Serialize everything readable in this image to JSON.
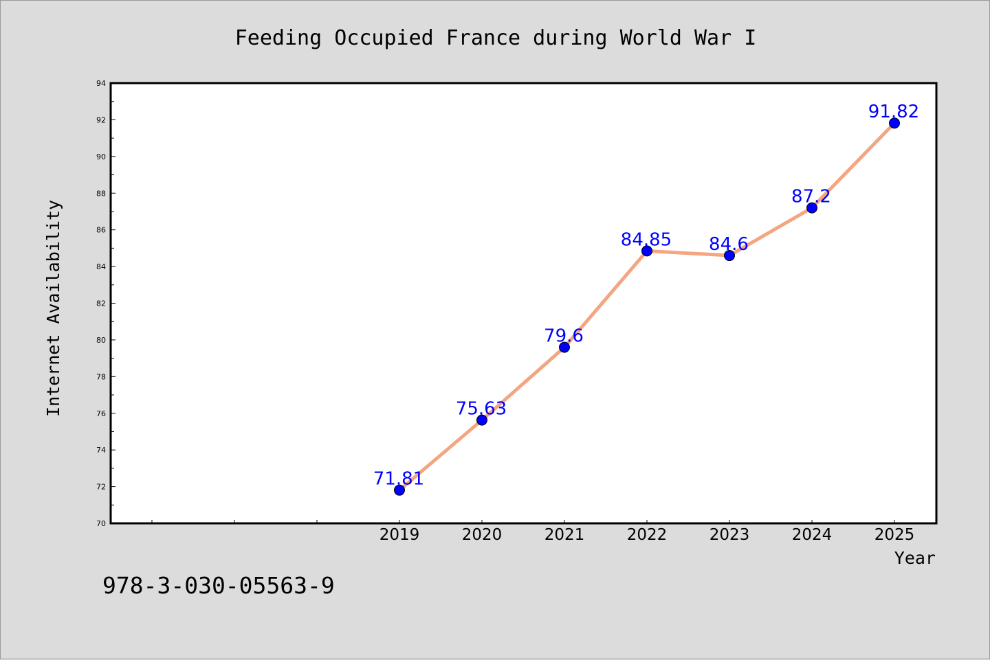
{
  "chart_data": {
    "type": "line",
    "title": "Feeding Occupied France during World War I",
    "xlabel": "Year",
    "ylabel": "Internet Availability",
    "categories": [
      "2019",
      "2020",
      "2021",
      "2022",
      "2023",
      "2024",
      "2025"
    ],
    "series": [
      {
        "values": [
          71.81,
          75.63,
          79.6,
          84.85,
          84.6,
          87.2,
          91.82
        ],
        "labels": [
          "71.81",
          "75.63",
          "79.6",
          "84.85",
          "84.6",
          "87.2",
          "91.82"
        ],
        "line_color": "#f4a582",
        "marker_color": "#0000ff",
        "label_color": "#0000ff"
      }
    ],
    "ylim": [
      70,
      94
    ],
    "yticks": [
      "70",
      "72",
      "74",
      "76",
      "78",
      "80",
      "82",
      "84",
      "86",
      "88",
      "90",
      "92",
      "94"
    ],
    "grid": false,
    "legend": "none",
    "background_color": "#dcdcdc",
    "plot_background_color": "#ffffff"
  },
  "footnote": "978-3-030-05563-9"
}
